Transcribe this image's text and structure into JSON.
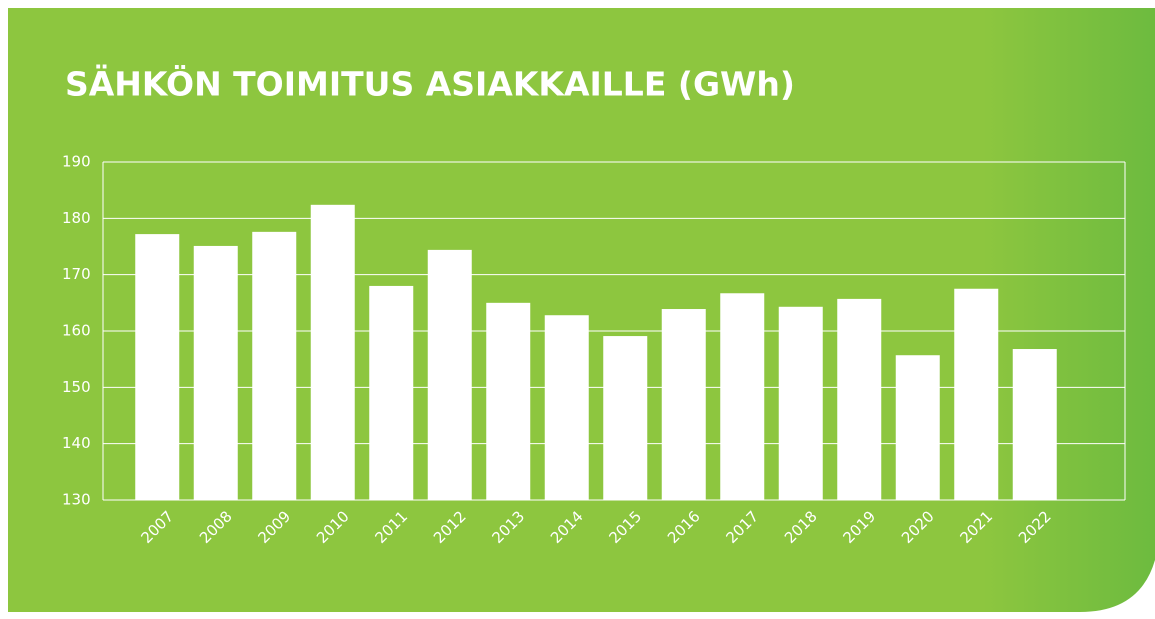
{
  "chart_data": {
    "type": "bar",
    "title": "SÄHKÖN TOIMITUS ASIAKKAILLE (GWh)",
    "categories": [
      "2007",
      "2008",
      "2009",
      "2010",
      "2011",
      "2012",
      "2013",
      "2014",
      "2015",
      "2016",
      "2017",
      "2018",
      "2019",
      "2020",
      "2021",
      "2022"
    ],
    "values": [
      177.2,
      175.1,
      177.6,
      182.4,
      168.0,
      174.4,
      165.0,
      162.8,
      159.1,
      163.9,
      166.7,
      164.3,
      165.7,
      155.7,
      167.5,
      156.8
    ],
    "color": "#ffffff",
    "ylim": [
      130,
      190
    ],
    "yticks": [
      130,
      140,
      150,
      160,
      170,
      180,
      190
    ],
    "grid": true
  }
}
